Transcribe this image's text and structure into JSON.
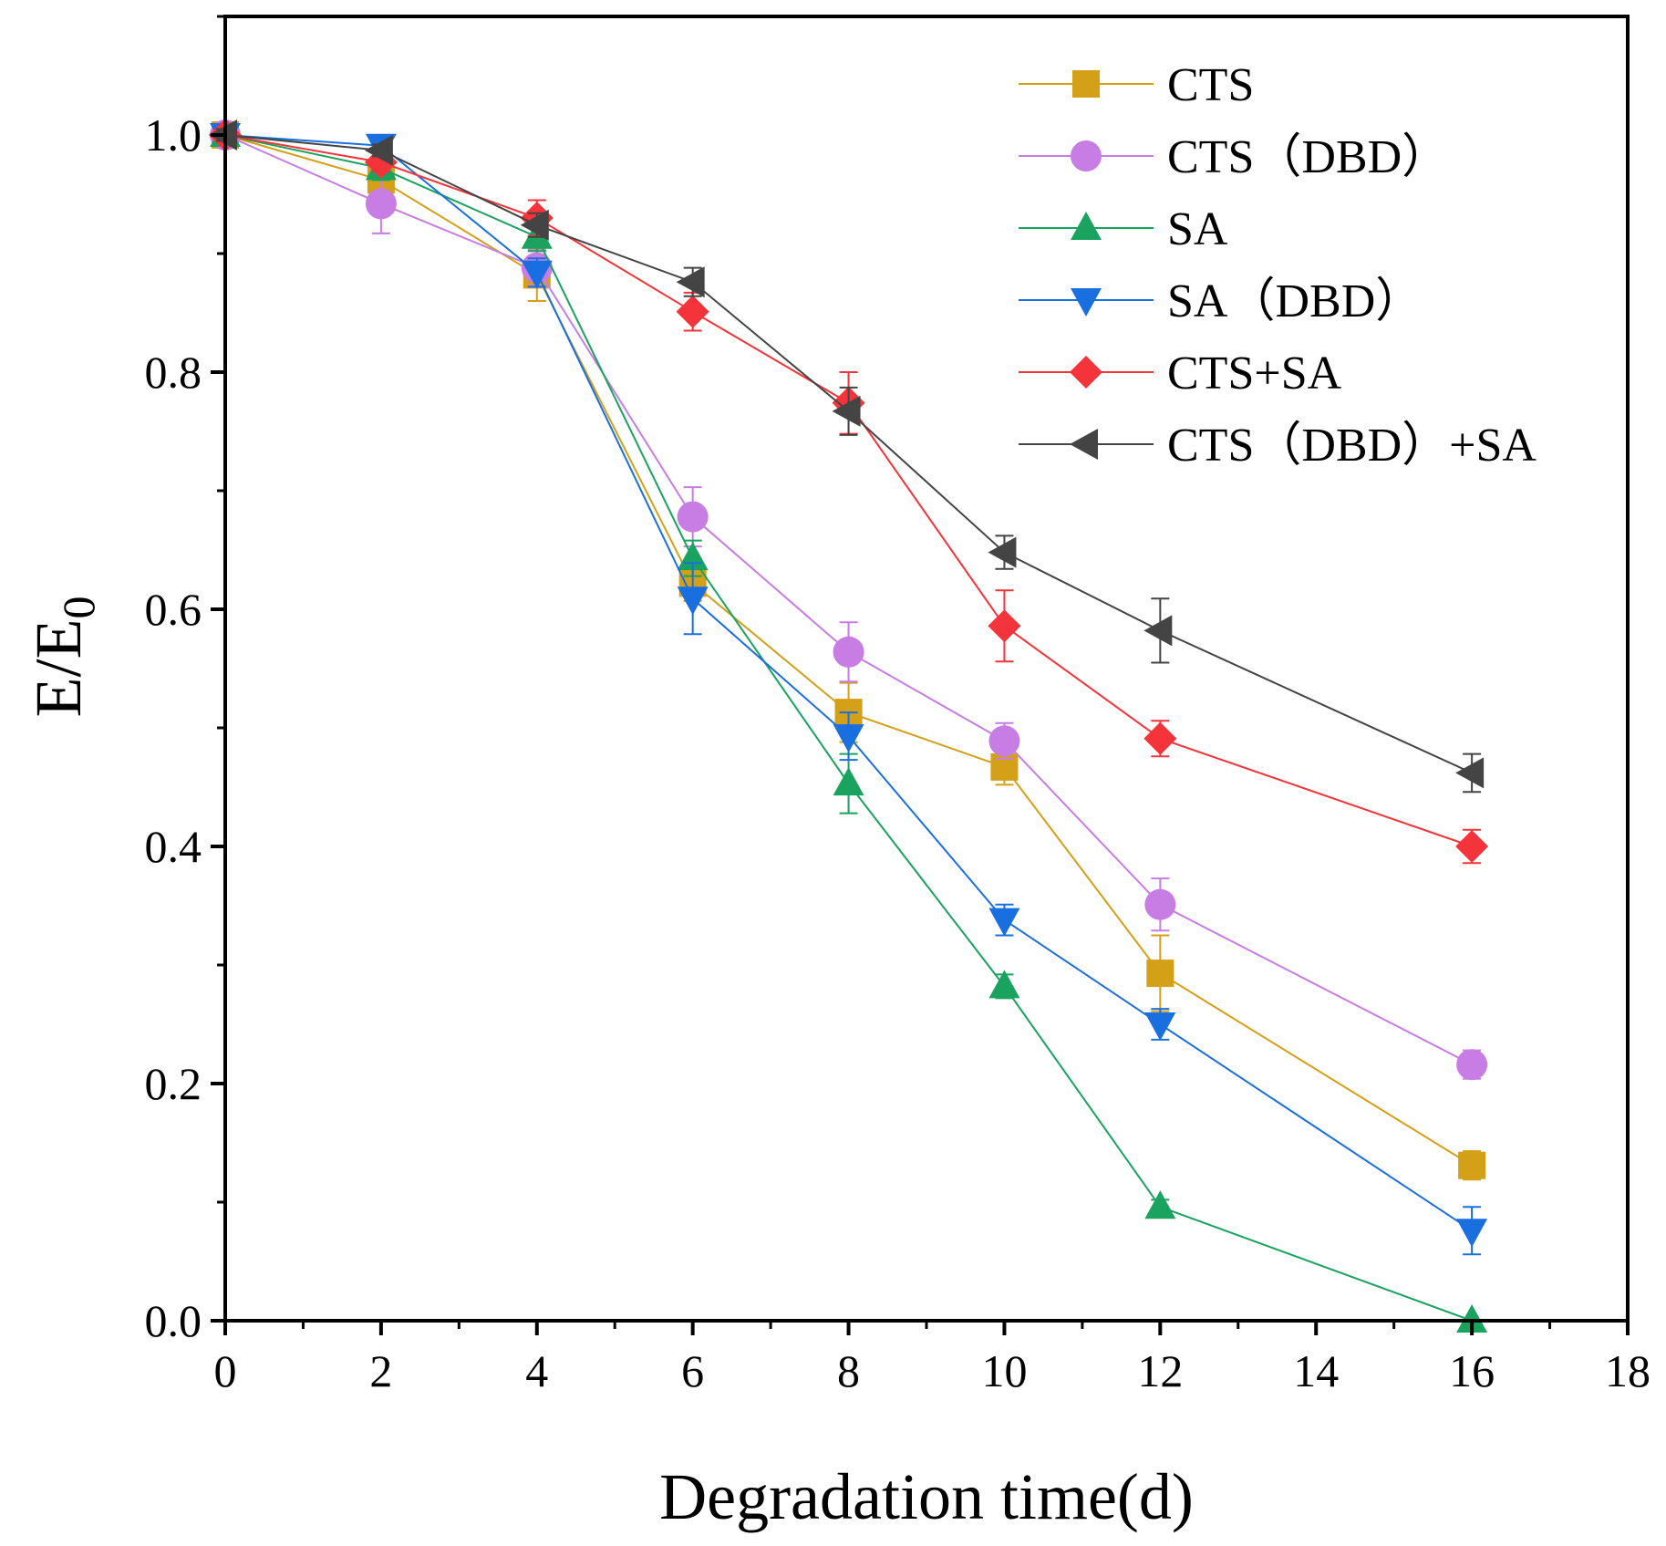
{
  "chart_data": {
    "type": "line",
    "title": "",
    "xlabel": "Degradation time(d)",
    "ylabel_main": "E/E",
    "ylabel_sub": "0",
    "xlim": [
      0,
      18
    ],
    "ylim": [
      0,
      1.1
    ],
    "x_ticks": [
      0,
      2,
      4,
      6,
      8,
      10,
      12,
      14,
      16,
      18
    ],
    "x_tick_labels": [
      "0",
      "2",
      "4",
      "6",
      "8",
      "10",
      "12",
      "14",
      "16",
      "18"
    ],
    "y_ticks": [
      0,
      0.2,
      0.4,
      0.6,
      0.8,
      1.0
    ],
    "y_tick_labels": [
      "0.0",
      "0.2",
      "0.4",
      "0.6",
      "0.8",
      "1.0"
    ],
    "legend_position": "top-right",
    "x": [
      0,
      2,
      4,
      6,
      8,
      10,
      12,
      16
    ],
    "series": [
      {
        "name": "CTS",
        "marker": "square",
        "color": "#D4A017",
        "values": [
          1.0,
          0.962,
          0.882,
          0.622,
          0.513,
          0.467,
          0.293,
          0.131
        ],
        "errors": [
          0.005,
          0.01,
          0.022,
          0.015,
          0.025,
          0.015,
          0.032,
          0.012
        ]
      },
      {
        "name": "CTS（DBD）",
        "marker": "circle",
        "color": "#C77DE3",
        "values": [
          1.0,
          0.942,
          0.888,
          0.678,
          0.564,
          0.489,
          0.351,
          0.216
        ],
        "errors": [
          0.005,
          0.025,
          0.015,
          0.025,
          0.025,
          0.015,
          0.022,
          0.012
        ]
      },
      {
        "name": "SA",
        "marker": "triangle-up",
        "color": "#1AA35F",
        "values": [
          1.0,
          0.972,
          0.914,
          0.643,
          0.453,
          0.282,
          0.096,
          0.0
        ],
        "errors": [
          0.005,
          0.01,
          0.012,
          0.015,
          0.025,
          0.01,
          0.006,
          0.0
        ]
      },
      {
        "name": "SA（DBD）",
        "marker": "triangle-down",
        "color": "#1A6FE0",
        "values": [
          1.0,
          0.991,
          0.884,
          0.609,
          0.493,
          0.338,
          0.25,
          0.076
        ],
        "errors": [
          0.005,
          0.005,
          0.012,
          0.03,
          0.02,
          0.013,
          0.013,
          0.02
        ]
      },
      {
        "name": "CTS+SA",
        "marker": "diamond",
        "color": "#F5333A",
        "values": [
          1.0,
          0.977,
          0.93,
          0.851,
          0.774,
          0.586,
          0.491,
          0.4
        ],
        "errors": [
          0.005,
          0.008,
          0.015,
          0.016,
          0.026,
          0.03,
          0.015,
          0.014
        ]
      },
      {
        "name": "CTS（DBD）+SA",
        "marker": "triangle-left",
        "color": "#444444",
        "values": [
          1.0,
          0.987,
          0.924,
          0.876,
          0.767,
          0.648,
          0.582,
          0.462
        ],
        "errors": [
          0.005,
          0.005,
          0.01,
          0.012,
          0.02,
          0.014,
          0.027,
          0.016
        ]
      }
    ]
  }
}
